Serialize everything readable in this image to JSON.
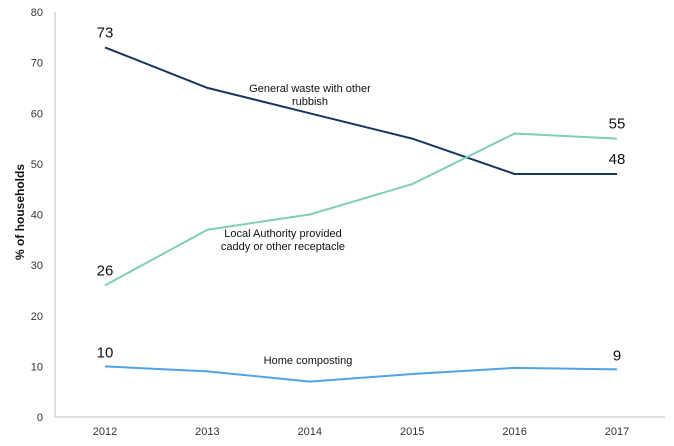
{
  "chart_data": {
    "type": "line",
    "title": "",
    "xlabel": "",
    "ylabel": "% of households",
    "x": [
      "2012",
      "2013",
      "2014",
      "2015",
      "2016",
      "2017"
    ],
    "ylim": [
      0,
      80
    ],
    "yticks": [
      "0",
      "10",
      "20",
      "30",
      "40",
      "50",
      "60",
      "70",
      "80"
    ],
    "grid": false,
    "legend": "none",
    "series": [
      {
        "key": "general",
        "color": "#17375e",
        "values": [
          73,
          65,
          60,
          55,
          48,
          48
        ],
        "annotation": [
          "General waste with other",
          "rubbish"
        ],
        "data_labels": {
          "start": "73",
          "end": "48"
        }
      },
      {
        "key": "caddy",
        "color": "#7fcdbb",
        "values": [
          26,
          37,
          40,
          46,
          56,
          55
        ],
        "annotation": [
          "Local Authority provided",
          "caddy or other receptacle"
        ],
        "data_labels": {
          "start": "26",
          "end": "55"
        }
      },
      {
        "key": "compost",
        "color": "#4fa3e8",
        "values": [
          10,
          9,
          7,
          8.5,
          9.7,
          9.4
        ],
        "annotation": [
          "Home composting"
        ],
        "data_labels": {
          "start": "10",
          "end": "9"
        }
      }
    ]
  }
}
